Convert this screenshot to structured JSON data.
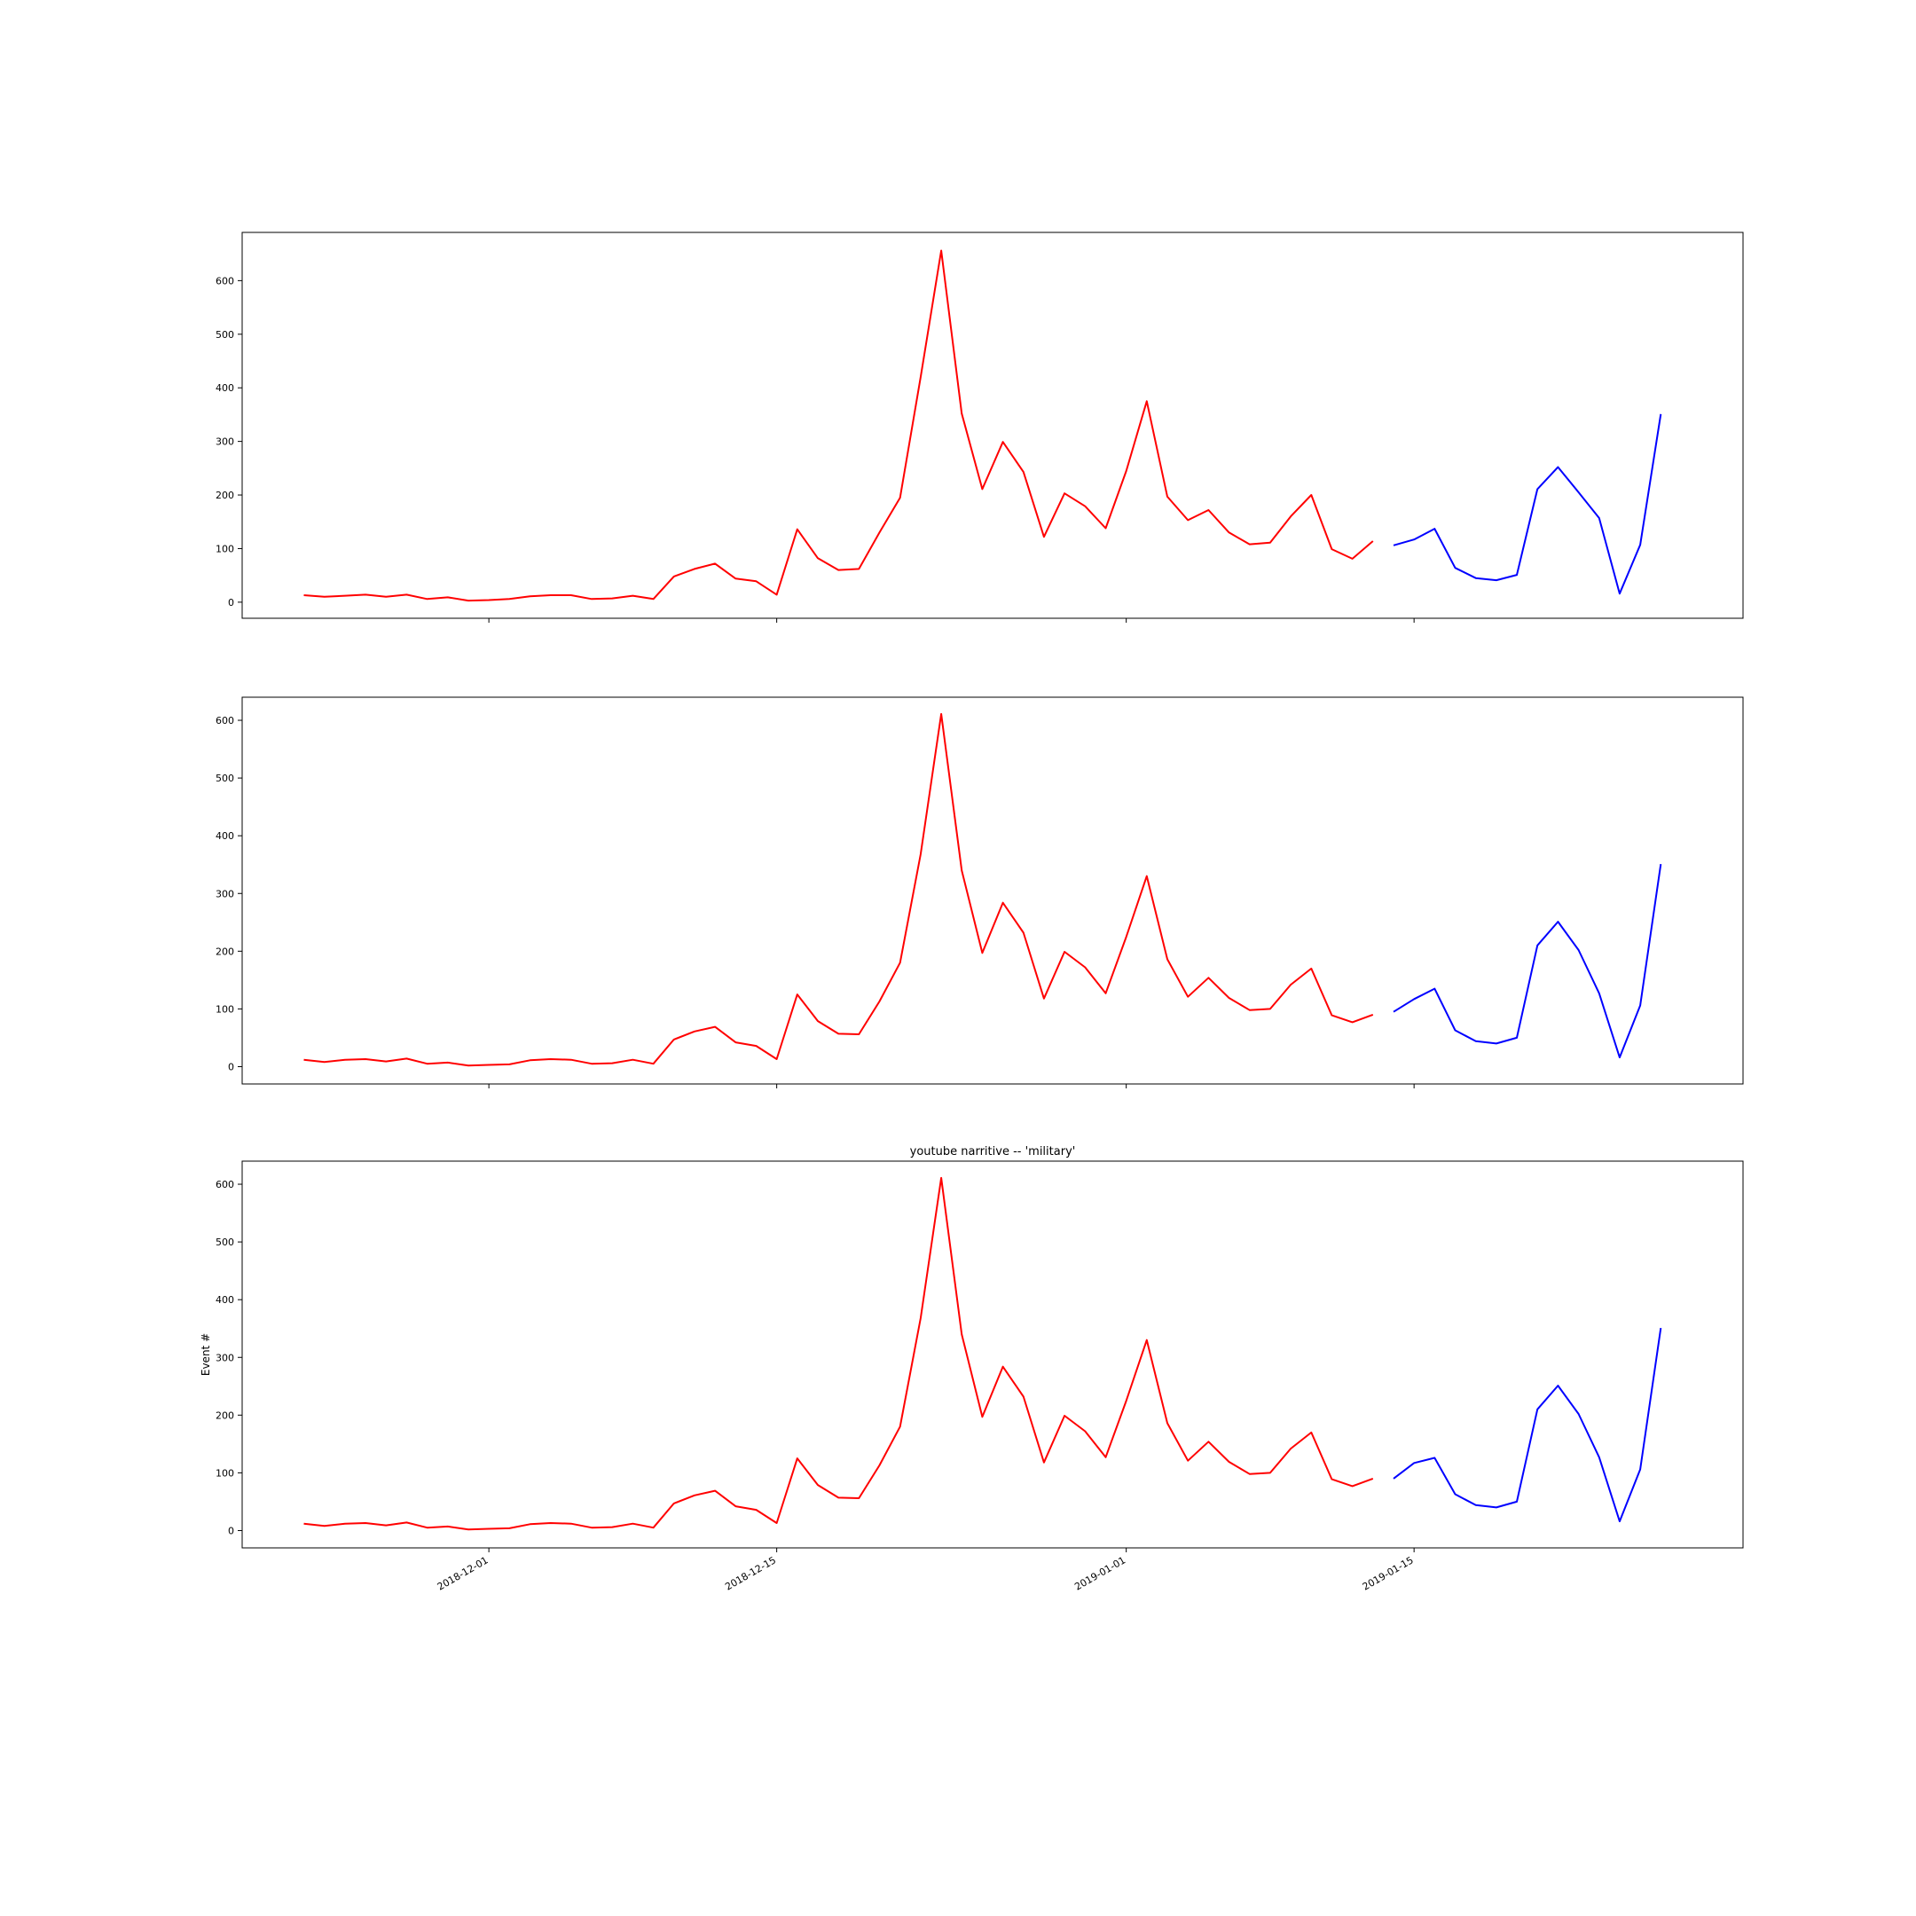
{
  "chart_data": [
    {
      "type": "line",
      "title": "",
      "xlabel": "",
      "ylabel": "",
      "x_start_date": "2018-11-22",
      "x_ticks": [
        "2018-12-01",
        "2018-12-15",
        "2019-01-01",
        "2019-01-15"
      ],
      "show_x_tick_labels": false,
      "xlim": [
        "2018-11-19",
        "2019-01-31"
      ],
      "ylim": [
        -30,
        690
      ],
      "y_ticks": [
        0,
        100,
        200,
        300,
        400,
        500,
        600
      ],
      "grid": false,
      "series": [
        {
          "color": "#ff0000",
          "start": "2018-11-22",
          "values": [
            13,
            10,
            12,
            14,
            10,
            14,
            6,
            9,
            3,
            4,
            6,
            11,
            13,
            13,
            6,
            7,
            12,
            6,
            48,
            62,
            72,
            44,
            39,
            14,
            136,
            82,
            60,
            62,
            130,
            195,
            420,
            656,
            352,
            211,
            299,
            243,
            122,
            203,
            179,
            138,
            245,
            375,
            197,
            153,
            172,
            130,
            108,
            111,
            160,
            200,
            99,
            81,
            114
          ]
        },
        {
          "color": "#0000ff",
          "start": "2019-01-14",
          "values": [
            106,
            117,
            137,
            64,
            45,
            41,
            51,
            211,
            252,
            205,
            157,
            16,
            107,
            351
          ]
        }
      ]
    },
    {
      "type": "line",
      "title": "",
      "xlabel": "",
      "ylabel": "",
      "x_start_date": "2018-11-22",
      "x_ticks": [
        "2018-12-01",
        "2018-12-15",
        "2019-01-01",
        "2019-01-15"
      ],
      "show_x_tick_labels": false,
      "xlim": [
        "2018-11-19",
        "2019-01-31"
      ],
      "ylim": [
        -30,
        640
      ],
      "y_ticks": [
        0,
        100,
        200,
        300,
        400,
        500,
        600
      ],
      "grid": false,
      "series": [
        {
          "color": "#ff0000",
          "start": "2018-11-22",
          "values": [
            12,
            8,
            12,
            13,
            9,
            14,
            5,
            7,
            2,
            3,
            4,
            11,
            13,
            12,
            5,
            6,
            12,
            5,
            47,
            61,
            69,
            42,
            36,
            13,
            125,
            79,
            57,
            56,
            113,
            180,
            368,
            611,
            340,
            197,
            284,
            232,
            118,
            199,
            172,
            127,
            225,
            330,
            186,
            121,
            154,
            119,
            98,
            100,
            142,
            170,
            89,
            77,
            90
          ]
        },
        {
          "color": "#0000ff",
          "start": "2019-01-14",
          "values": [
            95,
            117,
            135,
            63,
            44,
            40,
            50,
            210,
            251,
            202,
            127,
            16,
            106,
            351
          ]
        }
      ]
    },
    {
      "type": "line",
      "title": "youtube narritive -- 'military'",
      "xlabel": "",
      "ylabel": "Event #",
      "x_start_date": "2018-11-22",
      "x_ticks": [
        "2018-12-01",
        "2018-12-15",
        "2019-01-01",
        "2019-01-15"
      ],
      "show_x_tick_labels": true,
      "xlim": [
        "2018-11-19",
        "2019-01-31"
      ],
      "ylim": [
        -30,
        640
      ],
      "y_ticks": [
        0,
        100,
        200,
        300,
        400,
        500,
        600
      ],
      "grid": false,
      "series": [
        {
          "color": "#ff0000",
          "start": "2018-11-22",
          "values": [
            12,
            8,
            12,
            13,
            9,
            14,
            5,
            7,
            2,
            3,
            4,
            11,
            13,
            12,
            5,
            6,
            12,
            5,
            47,
            61,
            69,
            42,
            36,
            13,
            125,
            79,
            57,
            56,
            113,
            180,
            368,
            611,
            340,
            197,
            284,
            232,
            118,
            199,
            172,
            127,
            225,
            330,
            186,
            121,
            154,
            119,
            98,
            100,
            142,
            170,
            89,
            77,
            90
          ]
        },
        {
          "color": "#0000ff",
          "start": "2019-01-14",
          "values": [
            90,
            117,
            126,
            63,
            44,
            40,
            50,
            210,
            251,
            202,
            127,
            16,
            106,
            351
          ]
        }
      ]
    }
  ]
}
